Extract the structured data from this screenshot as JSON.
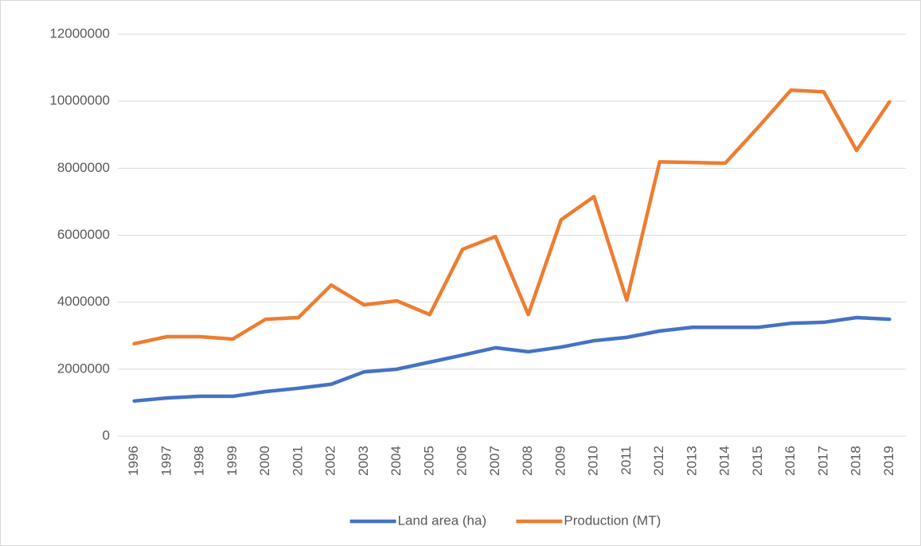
{
  "chart_data": {
    "type": "line",
    "categories": [
      "1996",
      "1997",
      "1998",
      "1999",
      "2000",
      "2001",
      "2002",
      "2003",
      "2004",
      "2005",
      "2006",
      "2007",
      "2008",
      "2009",
      "2010",
      "2011",
      "2012",
      "2013",
      "2014",
      "2015",
      "2016",
      "2017",
      "2018",
      "2019"
    ],
    "series": [
      {
        "name": "Land area (ha)",
        "color": "#4472c4",
        "values": [
          1050000,
          1140000,
          1190000,
          1190000,
          1330000,
          1430000,
          1550000,
          1920000,
          2000000,
          2210000,
          2420000,
          2640000,
          2520000,
          2660000,
          2850000,
          2950000,
          3140000,
          3250000,
          3250000,
          3250000,
          3370000,
          3400000,
          3540000,
          3490000
        ]
      },
      {
        "name": "Production (MT)",
        "color": "#ed7d31",
        "values": [
          2760000,
          2970000,
          2970000,
          2900000,
          3490000,
          3540000,
          4510000,
          3920000,
          4040000,
          3630000,
          5580000,
          5960000,
          3630000,
          6460000,
          7150000,
          4060000,
          8190000,
          8170000,
          8150000,
          9220000,
          10330000,
          10280000,
          8530000,
          9980000
        ]
      }
    ],
    "ylim": [
      0,
      12000000
    ],
    "yticks": [
      0,
      2000000,
      4000000,
      6000000,
      8000000,
      10000000,
      12000000
    ],
    "grid": true,
    "legend": "bottom"
  }
}
